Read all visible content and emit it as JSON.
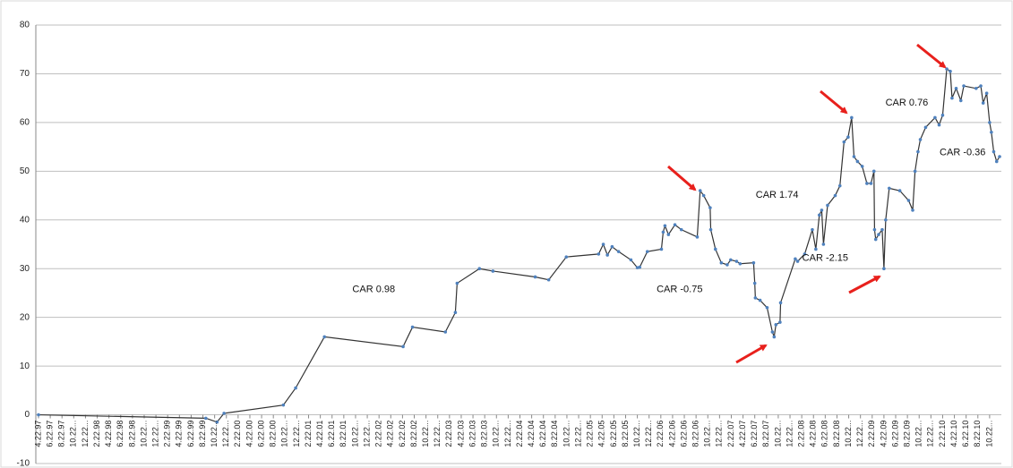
{
  "chart_data": {
    "type": "line",
    "annotations": [
      {
        "text": "CAR 0.98",
        "x": 57.1,
        "y": 25.7
      },
      {
        "text": "CAR -0.75",
        "x": 109.2,
        "y": 25.7
      },
      {
        "text": "CAR 1.74",
        "x": 125.8,
        "y": 45.1
      },
      {
        "text": "CAR -2.15",
        "x": 134.0,
        "y": 32.1
      },
      {
        "text": "CAR 0.76",
        "x": 147.9,
        "y": 64.0
      },
      {
        "text": "CAR -0.36",
        "x": 157.4,
        "y": 53.8
      }
    ],
    "xlim": [
      0,
      164
    ],
    "xticks": [
      {
        "value": 0,
        "label": "4.22.97"
      },
      {
        "value": 2,
        "label": "6.22.97"
      },
      {
        "value": 4,
        "label": "8.22.97"
      },
      {
        "value": 6,
        "label": "10.22..."
      },
      {
        "value": 8,
        "label": "12.22..."
      },
      {
        "value": 10,
        "label": "2.22.98"
      },
      {
        "value": 12,
        "label": "4.22.98"
      },
      {
        "value": 14,
        "label": "6.22.98"
      },
      {
        "value": 16,
        "label": "8.22.98"
      },
      {
        "value": 18,
        "label": "10.22..."
      },
      {
        "value": 20,
        "label": "12.22..."
      },
      {
        "value": 22,
        "label": "2.22.99"
      },
      {
        "value": 24,
        "label": "4.22.99"
      },
      {
        "value": 26,
        "label": "6.22.99"
      },
      {
        "value": 28,
        "label": "8.22.99"
      },
      {
        "value": 30,
        "label": "10.22..."
      },
      {
        "value": 32,
        "label": "12.22..."
      },
      {
        "value": 34,
        "label": "2.22.00"
      },
      {
        "value": 36,
        "label": "4.22.00"
      },
      {
        "value": 38,
        "label": "6.22.00"
      },
      {
        "value": 40,
        "label": "8.22.00"
      },
      {
        "value": 42,
        "label": "10.22..."
      },
      {
        "value": 44,
        "label": "12.22..."
      },
      {
        "value": 46,
        "label": "2.22.01"
      },
      {
        "value": 48,
        "label": "4.22.01"
      },
      {
        "value": 50,
        "label": "6.22.01"
      },
      {
        "value": 52,
        "label": "8.22.01"
      },
      {
        "value": 54,
        "label": "10.22..."
      },
      {
        "value": 56,
        "label": "12.22..."
      },
      {
        "value": 58,
        "label": "2.22.02"
      },
      {
        "value": 60,
        "label": "4.22.02"
      },
      {
        "value": 62,
        "label": "6.22.02"
      },
      {
        "value": 64,
        "label": "8.22.02"
      },
      {
        "value": 66,
        "label": "10.22..."
      },
      {
        "value": 68,
        "label": "12.22..."
      },
      {
        "value": 70,
        "label": "2.22.03"
      },
      {
        "value": 72,
        "label": "4.22.03"
      },
      {
        "value": 74,
        "label": "6.22.03"
      },
      {
        "value": 76,
        "label": "8.22.03"
      },
      {
        "value": 78,
        "label": "10.22..."
      },
      {
        "value": 80,
        "label": "12.22..."
      },
      {
        "value": 82,
        "label": "2.22.04"
      },
      {
        "value": 84,
        "label": "4.22.04"
      },
      {
        "value": 86,
        "label": "6.22.04"
      },
      {
        "value": 88,
        "label": "8.22.04"
      },
      {
        "value": 90,
        "label": "10.22..."
      },
      {
        "value": 92,
        "label": "12.22..."
      },
      {
        "value": 94,
        "label": "2.22.05"
      },
      {
        "value": 96,
        "label": "4.22.05"
      },
      {
        "value": 98,
        "label": "6.22.05"
      },
      {
        "value": 100,
        "label": "8.22.05"
      },
      {
        "value": 102,
        "label": "10.22..."
      },
      {
        "value": 104,
        "label": "12.22..."
      },
      {
        "value": 106,
        "label": "2.22.06"
      },
      {
        "value": 108,
        "label": "4.22.06"
      },
      {
        "value": 110,
        "label": "6.22.06"
      },
      {
        "value": 112,
        "label": "8.22.06"
      },
      {
        "value": 114,
        "label": "10.22..."
      },
      {
        "value": 116,
        "label": "12.22..."
      },
      {
        "value": 118,
        "label": "2.22.07"
      },
      {
        "value": 120,
        "label": "4.22.07"
      },
      {
        "value": 122,
        "label": "6.22.07"
      },
      {
        "value": 124,
        "label": "8.22.07"
      },
      {
        "value": 126,
        "label": "10.22..."
      },
      {
        "value": 128,
        "label": "12.22..."
      },
      {
        "value": 130,
        "label": "2.22.08"
      },
      {
        "value": 132,
        "label": "4.22.08"
      },
      {
        "value": 134,
        "label": "6.22.08"
      },
      {
        "value": 136,
        "label": "8.22.08"
      },
      {
        "value": 138,
        "label": "10.22..."
      },
      {
        "value": 140,
        "label": "12.22..."
      },
      {
        "value": 142,
        "label": "2.22.09"
      },
      {
        "value": 144,
        "label": "4.22.09"
      },
      {
        "value": 146,
        "label": "6.22.09"
      },
      {
        "value": 148,
        "label": "8.22.09"
      },
      {
        "value": 150,
        "label": "10.22..."
      },
      {
        "value": 152,
        "label": "12.22..."
      },
      {
        "value": 154,
        "label": "2.22.10"
      },
      {
        "value": 156,
        "label": "4.22.10"
      },
      {
        "value": 158,
        "label": "6.22.10"
      },
      {
        "value": 160,
        "label": "8.22.10"
      },
      {
        "value": 162,
        "label": "10.22..."
      }
    ],
    "ylim": [
      -10,
      80
    ],
    "yticks": [
      -10,
      0,
      10,
      20,
      30,
      40,
      50,
      60,
      70,
      80
    ],
    "grid": true,
    "line_color": "#333333",
    "marker_color": "#4f81bd",
    "x": [
      0,
      28.5,
      30.4,
      31.6,
      41.7,
      43.8,
      48.7,
      62.1,
      63.7,
      69.3,
      71.0,
      71.3,
      75.1,
      77.4,
      84.6,
      86.9,
      89.9,
      95.4,
      96.2,
      96.9,
      97.7,
      98.8,
      100.9,
      102.0,
      102.4,
      103.7,
      106.1,
      106.4,
      106.7,
      107.3,
      108.4,
      109.5,
      112.2,
      112.7,
      113.3,
      114.4,
      114.5,
      115.3,
      116.3,
      117.3,
      117.9,
      118.9,
      119.5,
      121.8,
      122.0,
      122.1,
      122.9,
      124.1,
      125.0,
      125.3,
      125.6,
      126.3,
      126.4,
      128.9,
      129.3,
      130.5,
      131.8,
      132.4,
      133.0,
      133.4,
      133.7,
      134.4,
      135.7,
      136.5,
      137.2,
      137.9,
      138.5,
      138.9,
      139.5,
      140.3,
      141.1,
      141.8,
      142.3,
      142.4,
      142.6,
      143.1,
      143.7,
      144.0,
      144.3,
      144.9,
      146.7,
      148.2,
      148.9,
      149.3,
      149.8,
      150.2,
      151.1,
      152.7,
      153.4,
      154.0,
      154.7,
      155.3,
      155.6,
      156.3,
      157.1,
      157.6,
      159.7,
      160.5,
      160.9,
      161.5,
      162.0,
      162.3,
      162.7,
      163.2,
      163.7
    ],
    "values": [
      0,
      -0.7,
      -1.5,
      0.3,
      2,
      5.5,
      16,
      14,
      18,
      17,
      21,
      27,
      30,
      29.5,
      28.3,
      27.7,
      32.4,
      33,
      35,
      32.8,
      34.5,
      33.5,
      31.8,
      30.2,
      30.3,
      33.5,
      34,
      37.5,
      38.8,
      37,
      39,
      38,
      36.5,
      46,
      45,
      42.5,
      38,
      34,
      31.2,
      30.8,
      31.8,
      31.5,
      31,
      31.2,
      27,
      24,
      23.5,
      22,
      17,
      16,
      18.5,
      19,
      23,
      32,
      31.5,
      33,
      38,
      34,
      41,
      42,
      35,
      43,
      45,
      47,
      56,
      57,
      61,
      53,
      52,
      51,
      47.5,
      47.5,
      50,
      38,
      36,
      37,
      38,
      30,
      40,
      46.5,
      46,
      44,
      42,
      50,
      54,
      56.5,
      59,
      61,
      59.5,
      61.5,
      71,
      70.5,
      65,
      67,
      64.5,
      67.5,
      67,
      67.5,
      64,
      66,
      60,
      58,
      54,
      52,
      53
    ]
  }
}
